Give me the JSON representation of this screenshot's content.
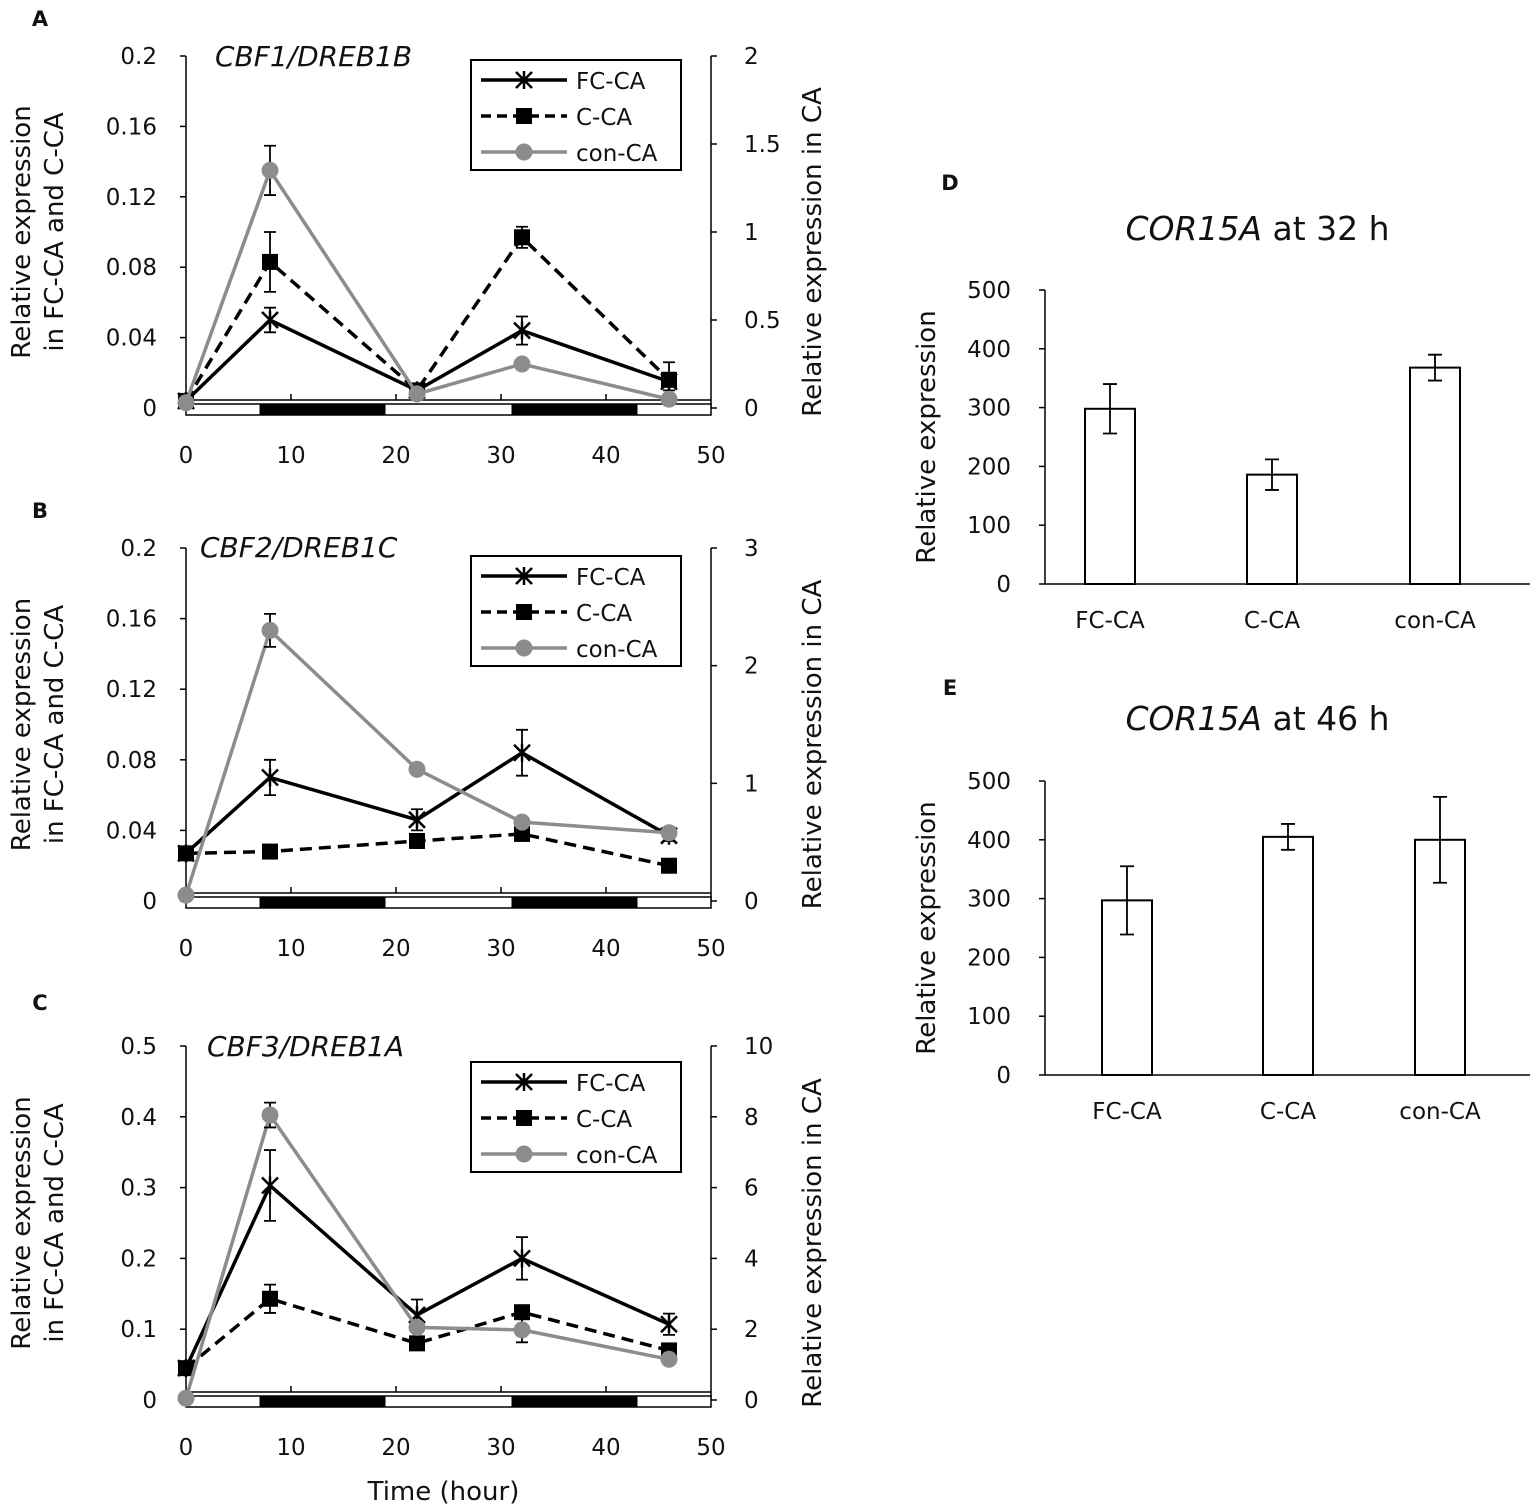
{
  "chart_data": [
    {
      "panel": "A",
      "type": "line",
      "title": "CBF1/DREB1B",
      "xlabel": "",
      "ylabel": "Relative expression in FC-CA and C-CA",
      "ylabel2": "Relative expression in CA",
      "ylabel_lines": [
        "Relative expression",
        "in FC-CA and C-CA"
      ],
      "xlim": [
        0,
        50
      ],
      "xticks": [
        0,
        10,
        20,
        30,
        40,
        50
      ],
      "ylim": [
        0,
        0.2
      ],
      "yticks": [
        "0",
        "0.04",
        "0.08",
        "0.12",
        "0.16",
        "0.2"
      ],
      "ylim2": [
        0,
        2
      ],
      "yticks2": [
        "0",
        "0.5",
        "1",
        "1.5",
        "2"
      ],
      "x": [
        0,
        8,
        22,
        32,
        46
      ],
      "dark_periods": [
        [
          7,
          19
        ],
        [
          31,
          43
        ]
      ],
      "series": [
        {
          "name": "FC-CA",
          "axis": "left",
          "marker": "x",
          "style": "solid",
          "color": "#000000",
          "values": [
            0.004,
            0.05,
            0.01,
            0.044,
            0.015
          ],
          "err": [
            0.002,
            0.007,
            0.003,
            0.008,
            0.005
          ]
        },
        {
          "name": "C-CA",
          "axis": "left",
          "marker": "square",
          "style": "dashed",
          "color": "#000000",
          "values": [
            0.004,
            0.083,
            0.01,
            0.097,
            0.016
          ],
          "err": [
            0.002,
            0.017,
            0.003,
            0.006,
            0.01
          ]
        },
        {
          "name": "con-CA",
          "axis": "right",
          "marker": "circle",
          "style": "solid",
          "color": "#8c8c8c",
          "values": [
            0.03,
            1.35,
            0.08,
            0.25,
            0.05
          ],
          "err": [
            0.01,
            0.14,
            0.02,
            0.02,
            0.01
          ]
        }
      ]
    },
    {
      "panel": "B",
      "type": "line",
      "title": "CBF2/DREB1C",
      "xlabel": "",
      "ylabel": "Relative expression in FC-CA and C-CA",
      "ylabel2": "Relative expression in CA",
      "ylabel_lines": [
        "Relative expression",
        "in FC-CA and C-CA"
      ],
      "xlim": [
        0,
        50
      ],
      "xticks": [
        0,
        10,
        20,
        30,
        40,
        50
      ],
      "ylim": [
        0,
        0.2
      ],
      "yticks": [
        "0",
        "0.04",
        "0.08",
        "0.12",
        "0.16",
        "0.2"
      ],
      "ylim2": [
        0,
        3
      ],
      "yticks2": [
        "0",
        "1",
        "2",
        "3"
      ],
      "x": [
        0,
        8,
        22,
        32,
        46
      ],
      "dark_periods": [
        [
          7,
          19
        ],
        [
          31,
          43
        ]
      ],
      "series": [
        {
          "name": "FC-CA",
          "axis": "left",
          "marker": "x",
          "style": "solid",
          "color": "#000000",
          "values": [
            0.027,
            0.07,
            0.046,
            0.084,
            0.037
          ],
          "err": [
            0.002,
            0.01,
            0.006,
            0.013,
            0.003
          ]
        },
        {
          "name": "C-CA",
          "axis": "left",
          "marker": "square",
          "style": "dashed",
          "color": "#000000",
          "values": [
            0.027,
            0.028,
            0.034,
            0.038,
            0.02
          ],
          "err": [
            0.002,
            0.002,
            0.002,
            0.003,
            0.002
          ]
        },
        {
          "name": "con-CA",
          "axis": "right",
          "marker": "circle",
          "style": "solid",
          "color": "#8c8c8c",
          "values": [
            0.05,
            2.3,
            1.12,
            0.67,
            0.58
          ],
          "err": [
            0.01,
            0.14,
            0.03,
            0.04,
            0.03
          ]
        }
      ]
    },
    {
      "panel": "C",
      "type": "line",
      "title": "CBF3/DREB1A",
      "xlabel": "Time (hour)",
      "ylabel": "Relative expression in FC-CA and C-CA",
      "ylabel2": "Relative expression in CA",
      "ylabel_lines": [
        "Relative expression",
        "in FC-CA and C-CA"
      ],
      "xlim": [
        0,
        50
      ],
      "xticks": [
        0,
        10,
        20,
        30,
        40,
        50
      ],
      "ylim": [
        0,
        0.5
      ],
      "yticks": [
        "0",
        "0.1",
        "0.2",
        "0.3",
        "0.4",
        "0.5"
      ],
      "ylim2": [
        0,
        10
      ],
      "yticks2": [
        "0",
        "2",
        "4",
        "6",
        "8",
        "10"
      ],
      "x": [
        0,
        8,
        22,
        32,
        46
      ],
      "dark_periods": [
        [
          7,
          19
        ],
        [
          31,
          43
        ]
      ],
      "series": [
        {
          "name": "FC-CA",
          "axis": "left",
          "marker": "x",
          "style": "solid",
          "color": "#000000",
          "values": [
            0.045,
            0.303,
            0.12,
            0.2,
            0.107
          ],
          "err": [
            0.003,
            0.05,
            0.022,
            0.03,
            0.015
          ]
        },
        {
          "name": "C-CA",
          "axis": "left",
          "marker": "square",
          "style": "dashed",
          "color": "#000000",
          "values": [
            0.045,
            0.143,
            0.08,
            0.124,
            0.07
          ],
          "err": [
            0.003,
            0.02,
            0.008,
            0.008,
            0.008
          ]
        },
        {
          "name": "con-CA",
          "axis": "right",
          "marker": "circle",
          "style": "solid",
          "color": "#8c8c8c",
          "values": [
            0.05,
            8.05,
            2.05,
            1.98,
            1.15
          ],
          "err": [
            0.01,
            0.35,
            0.1,
            0.35,
            0.1
          ]
        }
      ]
    },
    {
      "panel": "D",
      "type": "bar",
      "title_italic": "COR15A",
      "title_rest": " at 32 h",
      "ylabel": "Relative expression",
      "ylim": [
        0,
        500
      ],
      "yticks": [
        "0",
        "100",
        "200",
        "300",
        "400",
        "500"
      ],
      "categories": [
        "FC-CA",
        "C-CA",
        "con-CA"
      ],
      "values": [
        298,
        186,
        368
      ],
      "err": [
        42,
        26,
        22
      ]
    },
    {
      "panel": "E",
      "type": "bar",
      "title_italic": "COR15A",
      "title_rest": " at 46 h",
      "ylabel": "Relative expression",
      "ylim": [
        0,
        500
      ],
      "yticks": [
        "0",
        "100",
        "200",
        "300",
        "400",
        "500"
      ],
      "categories": [
        "FC-CA",
        "C-CA",
        "con-CA"
      ],
      "values": [
        297,
        405,
        400
      ],
      "err": [
        58,
        22,
        73
      ]
    }
  ]
}
